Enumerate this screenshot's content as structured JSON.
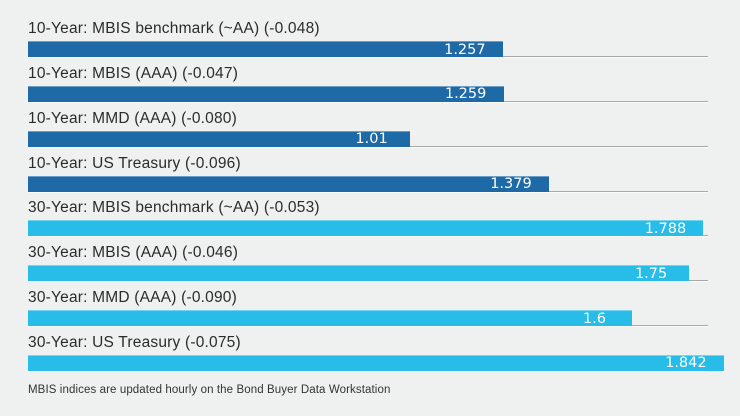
{
  "chart_data": {
    "type": "bar",
    "orientation": "horizontal",
    "title": "",
    "xlabel": "",
    "ylabel": "",
    "xlim": [
      0,
      1.8
    ],
    "grid": false,
    "legend": "none",
    "group_colors": {
      "10-year": "#1e6aa7",
      "30-year": "#27bde8"
    },
    "track_line_color": "#a8a8a8",
    "background_color": "#eff1f1",
    "value_label_color": "#ffffff",
    "categories": [
      "10-Year: MBIS benchmark (~AA) (-0.048)",
      "10-Year: MBIS (AAA) (-0.047)",
      "10-Year: MMD (AAA) (-0.080)",
      "10-Year: US Treasury (-0.096)",
      "30-Year: MBIS benchmark (~AA) (-0.053)",
      "30-Year: MBIS (AAA) (-0.046)",
      "30-Year: MMD (AAA) (-0.090)",
      "30-Year: US Treasury (-0.075)"
    ],
    "values": [
      1.257,
      1.259,
      1.01,
      1.379,
      1.788,
      1.75,
      1.6,
      1.842
    ],
    "rows": [
      {
        "label": "10-Year: MBIS benchmark (~AA) (-0.048)",
        "value": 1.257,
        "display_value": "1.257",
        "change": -0.048,
        "group": "10-year"
      },
      {
        "label": "10-Year: MBIS (AAA) (-0.047)",
        "value": 1.259,
        "display_value": "1.259",
        "change": -0.047,
        "group": "10-year"
      },
      {
        "label": "10-Year: MMD (AAA) (-0.080)",
        "value": 1.01,
        "display_value": "1.01",
        "change": -0.08,
        "group": "10-year"
      },
      {
        "label": "10-Year: US Treasury (-0.096)",
        "value": 1.379,
        "display_value": "1.379",
        "change": -0.096,
        "group": "10-year"
      },
      {
        "label": "30-Year: MBIS benchmark (~AA) (-0.053)",
        "value": 1.788,
        "display_value": "1.788",
        "change": -0.053,
        "group": "30-year"
      },
      {
        "label": "30-Year: MBIS (AAA) (-0.046)",
        "value": 1.75,
        "display_value": "1.75",
        "change": -0.046,
        "group": "30-year"
      },
      {
        "label": "30-Year: MMD (AAA) (-0.090)",
        "value": 1.6,
        "display_value": "1.6",
        "change": -0.09,
        "group": "30-year"
      },
      {
        "label": "30-Year: US Treasury (-0.075)",
        "value": 1.842,
        "display_value": "1.842",
        "change": -0.075,
        "group": "30-year"
      }
    ]
  },
  "footer": {
    "note": "MBIS indices are updated hourly on the Bond Buyer Data Workstation"
  }
}
